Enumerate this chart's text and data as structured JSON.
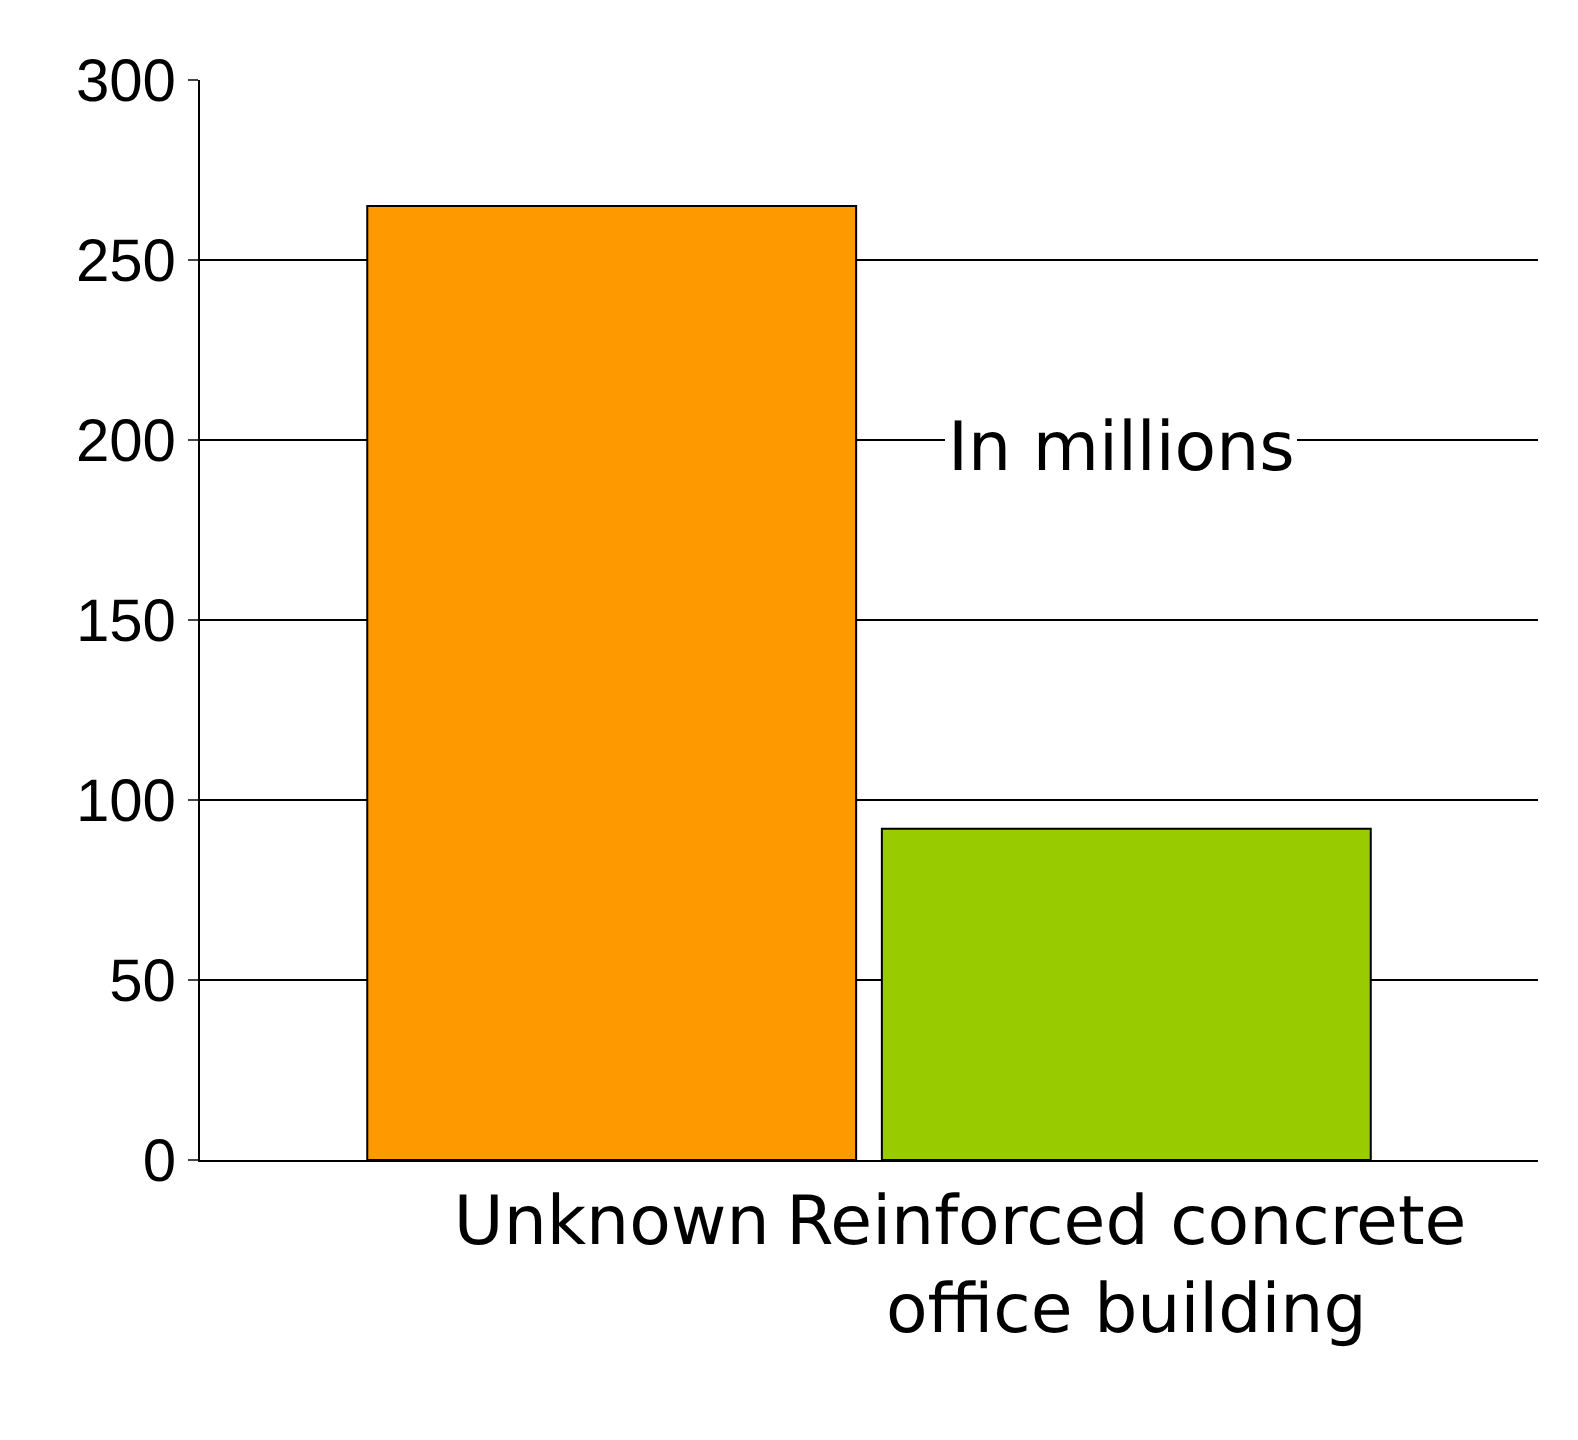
{
  "chart_data": {
    "type": "bar",
    "categories": [
      "Unknown",
      "Reinforced concrete office building"
    ],
    "values": [
      265,
      92
    ],
    "colors": [
      "#ff9900",
      "#99cc00"
    ],
    "ylim": [
      0,
      300
    ],
    "yticks": [
      0,
      50,
      100,
      150,
      200,
      250,
      300
    ],
    "grid": "y",
    "annotations": [
      "In millions"
    ]
  }
}
